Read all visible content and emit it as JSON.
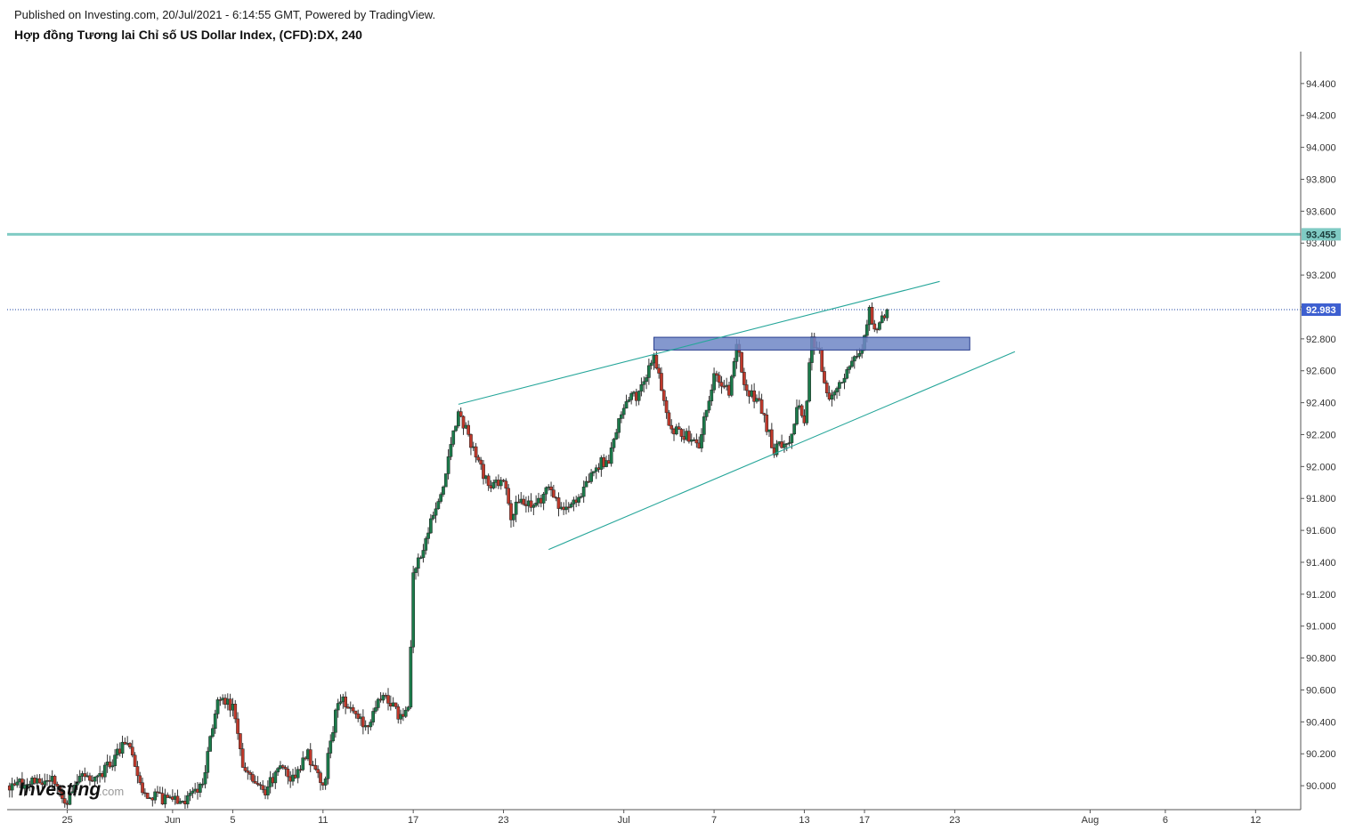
{
  "header": {
    "published": "Published on Investing.com, 20/Jul/2021 - 6:14:55 GMT, Powered by TradingView.",
    "title": "Hợp đồng Tương lai Chỉ số US Dollar Index, (CFD):DX, 240"
  },
  "watermark": {
    "brand": "Investing",
    "suffix": ".com"
  },
  "colors": {
    "up": "#1b7a4a",
    "down": "#c0392b",
    "wick": "#333333",
    "trendline": "#26a69a",
    "resistance_line": "#80cbc4",
    "resistance_tag": "#80cbc4",
    "zone_fill": "#6f86c6",
    "zone_border": "#2a3f8f",
    "price_line": "#1a3fa0",
    "price_tag": "#3d5fd0"
  },
  "chart_data": {
    "type": "candlestick",
    "x_axis": {
      "start": "2021-05-21",
      "end": "2021-08-15",
      "ticks": [
        {
          "date": "2021-05-25",
          "label": "25"
        },
        {
          "date": "2021-06-01",
          "label": "Jun"
        },
        {
          "date": "2021-06-05",
          "label": "5"
        },
        {
          "date": "2021-06-11",
          "label": "11"
        },
        {
          "date": "2021-06-17",
          "label": "17"
        },
        {
          "date": "2021-06-23",
          "label": "23"
        },
        {
          "date": "2021-07-01",
          "label": "Jul"
        },
        {
          "date": "2021-07-07",
          "label": "7"
        },
        {
          "date": "2021-07-13",
          "label": "13"
        },
        {
          "date": "2021-07-17",
          "label": "17"
        },
        {
          "date": "2021-07-23",
          "label": "23"
        },
        {
          "date": "2021-08-01",
          "label": "Aug"
        },
        {
          "date": "2021-08-06",
          "label": "6"
        },
        {
          "date": "2021-08-12",
          "label": "12"
        }
      ]
    },
    "y_axis": {
      "ylim": [
        89.85,
        94.6
      ],
      "ticks": [
        "90.000",
        "90.200",
        "90.400",
        "90.600",
        "90.800",
        "91.000",
        "91.200",
        "91.400",
        "91.600",
        "91.800",
        "92.000",
        "92.200",
        "92.400",
        "92.600",
        "92.800",
        "93.000",
        "93.200",
        "93.400",
        "93.600",
        "93.800",
        "94.000",
        "94.200",
        "94.400"
      ]
    },
    "path_points": [
      [
        "2021-05-21",
        90.0
      ],
      [
        "2021-05-24",
        90.03
      ],
      [
        "2021-05-25",
        89.9
      ],
      [
        "2021-05-26",
        90.05
      ],
      [
        "2021-05-27",
        90.05
      ],
      [
        "2021-05-28",
        90.15
      ],
      [
        "2021-05-29",
        90.3
      ],
      [
        "2021-05-30",
        89.95
      ],
      [
        "2021-06-01",
        89.9
      ],
      [
        "2021-06-02",
        89.92
      ],
      [
        "2021-06-03",
        90.02
      ],
      [
        "2021-06-04",
        90.55
      ],
      [
        "2021-06-05",
        90.5
      ],
      [
        "2021-06-05 16:00",
        90.1
      ],
      [
        "2021-06-07",
        89.95
      ],
      [
        "2021-06-08",
        90.1
      ],
      [
        "2021-06-09",
        90.05
      ],
      [
        "2021-06-10",
        90.2
      ],
      [
        "2021-06-11",
        89.98
      ],
      [
        "2021-06-12",
        90.55
      ],
      [
        "2021-06-13",
        90.5
      ],
      [
        "2021-06-14",
        90.35
      ],
      [
        "2021-06-15",
        90.6
      ],
      [
        "2021-06-16",
        90.45
      ],
      [
        "2021-06-16 16:00",
        90.48
      ],
      [
        "2021-06-17",
        91.3
      ],
      [
        "2021-06-18",
        91.6
      ],
      [
        "2021-06-19",
        91.9
      ],
      [
        "2021-06-20",
        92.35
      ],
      [
        "2021-06-21",
        92.1
      ],
      [
        "2021-06-22",
        91.88
      ],
      [
        "2021-06-23",
        91.9
      ],
      [
        "2021-06-23 12:00",
        91.7
      ],
      [
        "2021-06-24",
        91.8
      ],
      [
        "2021-06-25",
        91.75
      ],
      [
        "2021-06-26",
        91.85
      ],
      [
        "2021-06-27",
        91.72
      ],
      [
        "2021-06-28",
        91.8
      ],
      [
        "2021-06-29",
        92.0
      ],
      [
        "2021-06-30",
        92.05
      ],
      [
        "2021-07-01",
        92.4
      ],
      [
        "2021-07-02",
        92.45
      ],
      [
        "2021-07-03",
        92.7
      ],
      [
        "2021-07-04",
        92.25
      ],
      [
        "2021-07-05",
        92.2
      ],
      [
        "2021-07-06",
        92.15
      ],
      [
        "2021-07-07",
        92.55
      ],
      [
        "2021-07-08",
        92.48
      ],
      [
        "2021-07-08 12:00",
        92.78
      ],
      [
        "2021-07-09",
        92.5
      ],
      [
        "2021-07-10",
        92.4
      ],
      [
        "2021-07-11",
        92.1
      ],
      [
        "2021-07-12",
        92.18
      ],
      [
        "2021-07-12 16:00",
        92.4
      ],
      [
        "2021-07-13",
        92.25
      ],
      [
        "2021-07-13 12:00",
        92.8
      ],
      [
        "2021-07-14",
        92.7
      ],
      [
        "2021-07-14 16:00",
        92.4
      ],
      [
        "2021-07-15",
        92.45
      ],
      [
        "2021-07-16",
        92.6
      ],
      [
        "2021-07-16 12:00",
        92.7
      ],
      [
        "2021-07-17",
        92.8
      ],
      [
        "2021-07-17 08:00",
        93.01
      ],
      [
        "2021-07-17 16:00",
        92.83
      ],
      [
        "2021-07-18",
        92.88
      ],
      [
        "2021-07-18 12:00",
        92.98
      ]
    ],
    "last_price": 92.983,
    "annotations": {
      "resistance_level": {
        "value": 93.455,
        "label": "93.455"
      },
      "current_price": {
        "value": 92.983,
        "label": "92.983"
      },
      "zone": {
        "x0": "2021-07-03",
        "x1": "2021-07-24",
        "y0": 92.73,
        "y1": 92.81
      },
      "upper_trendline": [
        [
          "2021-06-20",
          92.39
        ],
        [
          "2021-07-22",
          93.16
        ]
      ],
      "lower_trendline": [
        [
          "2021-06-26",
          91.48
        ],
        [
          "2021-07-27",
          92.72
        ]
      ]
    }
  }
}
